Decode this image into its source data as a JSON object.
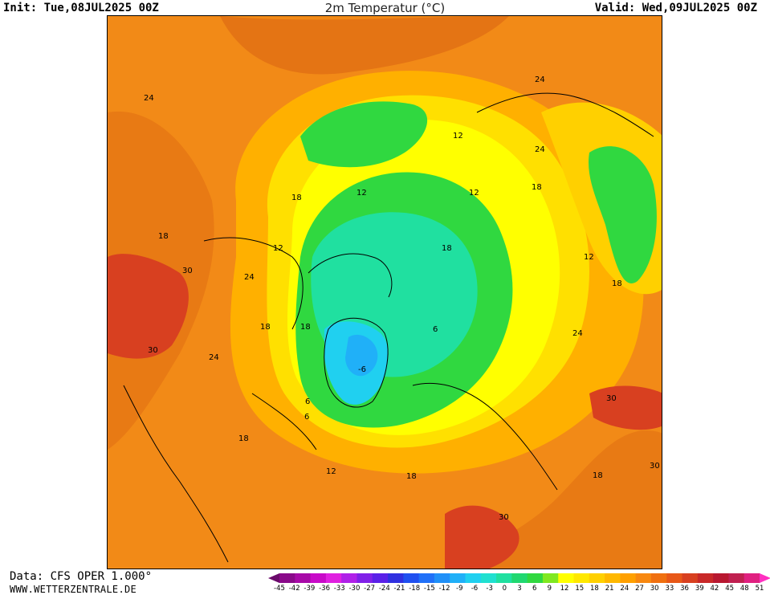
{
  "header": {
    "init": "Init: Tue,08JUL2025 00Z",
    "title": "2m Temperatur (°C)",
    "valid": "Valid: Wed,09JUL2025 00Z"
  },
  "footer": {
    "data_source": "Data: CFS OPER 1.000°",
    "website": "WWW.WETTERZENTRALE.DE"
  },
  "colorbar": {
    "ticks": [
      "-45",
      "-42",
      "-39",
      "-36",
      "-33",
      "-30",
      "-27",
      "-24",
      "-21",
      "-18",
      "-15",
      "-12",
      "-9",
      "-6",
      "-3",
      "0",
      "3",
      "6",
      "9",
      "12",
      "15",
      "18",
      "21",
      "24",
      "27",
      "30",
      "33",
      "36",
      "39",
      "42",
      "45",
      "48",
      "51"
    ],
    "colors": [
      "#6a0a6a",
      "#8a0a8a",
      "#a80aa8",
      "#c80ac8",
      "#e020e0",
      "#b020e8",
      "#8020e8",
      "#5a20e8",
      "#3030e0",
      "#2050f0",
      "#2070f8",
      "#2090f8",
      "#20b0f8",
      "#20d0f0",
      "#20e0d0",
      "#20e0a0",
      "#20d870",
      "#30d840",
      "#80e820",
      "#ffff00",
      "#ffe800",
      "#ffd000",
      "#ffb800",
      "#ffa000",
      "#f88810",
      "#f07010",
      "#e85818",
      "#d84020",
      "#c82828",
      "#b81830",
      "#c02050",
      "#e02080",
      "#ff30c0"
    ]
  },
  "map": {
    "palette": {
      "cold_blue": "#20b0f8",
      "mid_blue": "#20d0f0",
      "teal": "#20e0a0",
      "green": "#30d840",
      "lime": "#80e820",
      "yellow": "#ffff00",
      "yellow_orange": "#ffd000",
      "orange_light": "#ffb800",
      "orange": "#f28a17",
      "dark_orange": "#e85818",
      "red": "#c82828"
    },
    "contour_labels": [
      "24",
      "12",
      "24",
      "12",
      "24",
      "18",
      "12",
      "18",
      "18",
      "12",
      "18",
      "12",
      "18",
      "30",
      "24",
      "18",
      "6",
      "18",
      "30",
      "24",
      "24",
      "18",
      "6",
      "-6",
      "6",
      "30",
      "18",
      "12",
      "18",
      "30",
      "30"
    ]
  }
}
